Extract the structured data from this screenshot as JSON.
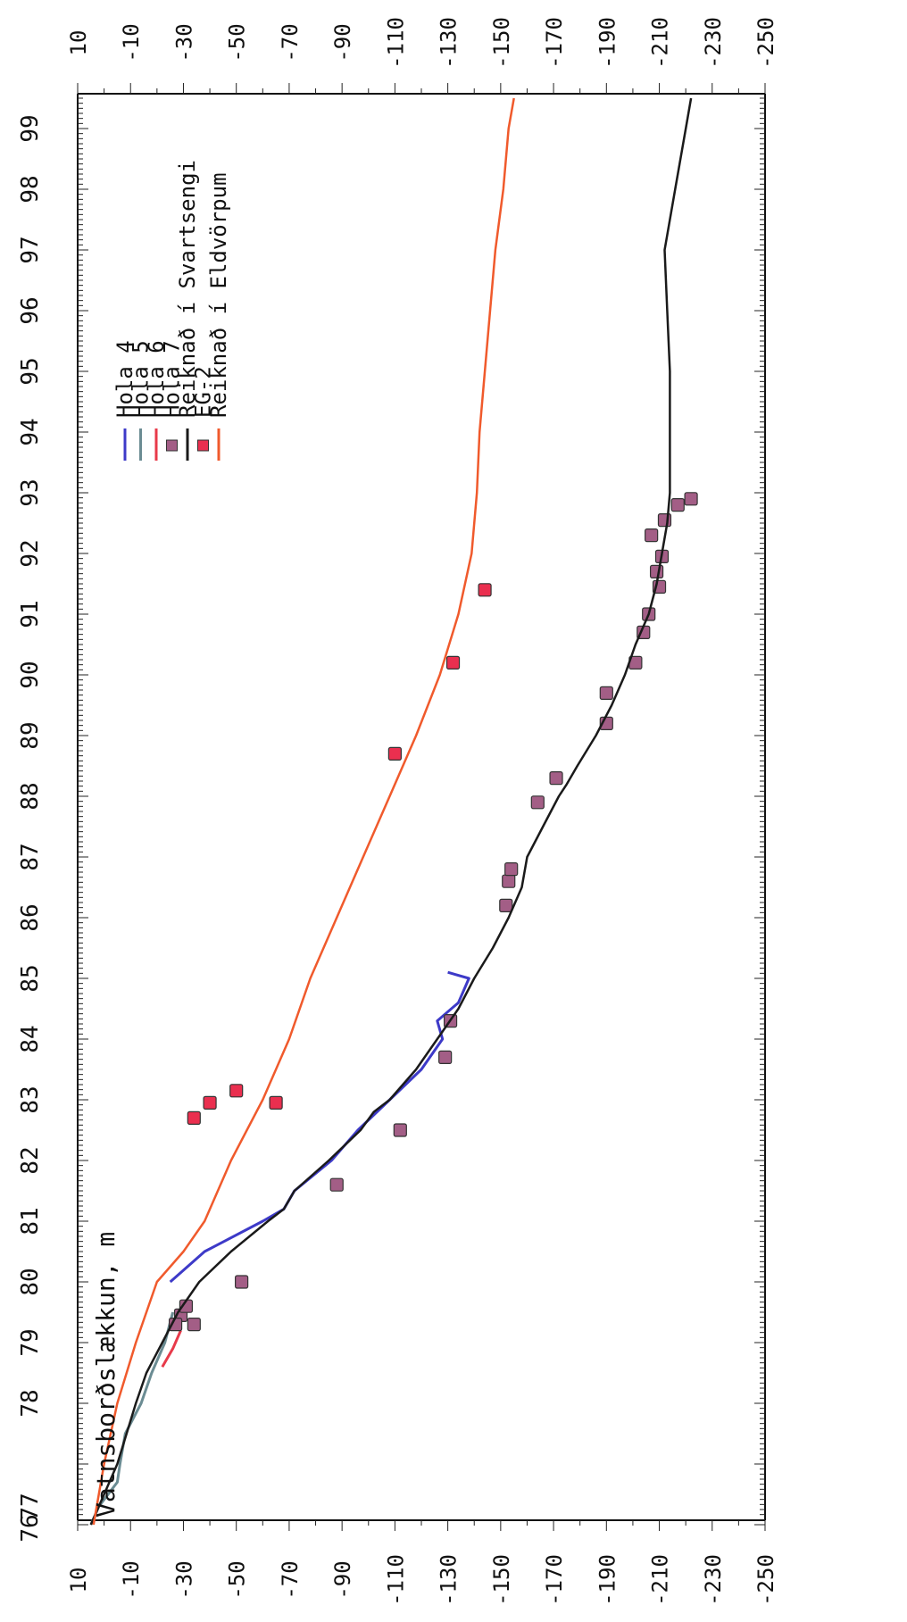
{
  "chart_data": {
    "type": "line",
    "orientation": "rotated-90",
    "title": "Vatnsborðslækkun, m",
    "x_axis": {
      "ticks": [
        "76",
        "77",
        "78",
        "79",
        "80",
        "81",
        "82",
        "83",
        "84",
        "85",
        "86",
        "87",
        "88",
        "89",
        "90",
        "91",
        "92",
        "93",
        "94",
        "95",
        "96",
        "97",
        "98",
        "99"
      ],
      "range": [
        1976,
        2000
      ]
    },
    "y_axis": {
      "ticks": [
        "10",
        "-10",
        "-30",
        "-50",
        "-70",
        "-90",
        "-110",
        "-130",
        "-150",
        "-170",
        "-190",
        "-210",
        "-230",
        "-250"
      ],
      "range": [
        10,
        -250
      ]
    },
    "legend_placement": "upper middle",
    "legend": [
      {
        "label": "Hola 4",
        "marker": "line",
        "color": "#3d3ac8"
      },
      {
        "label": "Hola 5",
        "marker": "line",
        "color": "#6b8c93"
      },
      {
        "label": "Hola 6",
        "marker": "line",
        "color": "#e83a4a"
      },
      {
        "label": "Hola 7",
        "marker": "square",
        "color": "#a35e86"
      },
      {
        "label": "Reiknað í Svartsengi",
        "marker": "line",
        "color": "#1a1a1a"
      },
      {
        "label": "EG-2",
        "marker": "square",
        "color": "#ea2f4f"
      },
      {
        "label": "Reiknað í Eldvörpum",
        "marker": "line",
        "color": "#f05a2c"
      }
    ],
    "series": [
      {
        "name": "Hola 4",
        "style": "line",
        "color": "#3d3ac8",
        "x": [
          1980.0,
          1980.5,
          1981.0,
          1981.2,
          1981.5,
          1982.0,
          1982.5,
          1983.0,
          1983.5,
          1984.0,
          1984.3,
          1984.6,
          1985.0,
          1985.1
        ],
        "y": [
          -25,
          -38,
          -60,
          -68,
          -72,
          -86,
          -96,
          -108,
          -120,
          -128,
          -126,
          -134,
          -138,
          -130
        ]
      },
      {
        "name": "Hola 5",
        "style": "line",
        "color": "#6b8c93",
        "x": [
          1976.0,
          1976.3,
          1976.7,
          1977.0,
          1977.5,
          1978.0,
          1978.5,
          1979.0,
          1979.5
        ],
        "y": [
          5,
          2,
          -5,
          -6,
          -8,
          -14,
          -18,
          -23,
          -26
        ]
      },
      {
        "name": "Hola 6",
        "style": "line",
        "color": "#e83a4a",
        "x": [
          1978.6,
          1978.9,
          1979.2
        ],
        "y": [
          -22,
          -26,
          -29
        ]
      },
      {
        "name": "Hola 7",
        "style": "scatter",
        "color": "#a35e86",
        "x": [
          1979.3,
          1979.45,
          1979.6,
          1979.3,
          1980.0,
          1981.6,
          1982.5,
          1983.7,
          1984.3,
          1986.2,
          1986.6,
          1986.8,
          1987.9,
          1988.3,
          1989.2,
          1989.7,
          1990.2,
          1990.7,
          1991.0,
          1991.45,
          1991.7,
          1991.95,
          1992.3,
          1992.55,
          1992.8,
          1992.9
        ],
        "y": [
          -34,
          -29,
          -31,
          -27,
          -52,
          -88,
          -112,
          -129,
          -131,
          -152,
          -153,
          -154,
          -164,
          -171,
          -190,
          -190,
          -201,
          -204,
          -206,
          -210,
          -209,
          -211,
          -207,
          -212,
          -217,
          -222
        ]
      },
      {
        "name": "Reiknað í Svartsengi",
        "style": "line",
        "color": "#1a1a1a",
        "x": [
          1976.0,
          1976.5,
          1977.0,
          1978.0,
          1978.5,
          1979.0,
          1979.5,
          1980.0,
          1980.5,
          1981.0,
          1981.2,
          1981.5,
          1982.0,
          1982.5,
          1982.8,
          1983.0,
          1983.5,
          1984.0,
          1984.5,
          1985.0,
          1985.5,
          1986.0,
          1986.5,
          1987.0,
          1987.5,
          1988.0,
          1988.2,
          1988.5,
          1989.0,
          1989.5,
          1990.0,
          1990.5,
          1991.0,
          1991.5,
          1992.0,
          1992.5,
          1993.0,
          1993.5,
          1994.0,
          1995.0,
          1996.0,
          1997.0,
          1998.0,
          1999.0,
          1999.5
        ],
        "y": [
          5,
          0,
          -5,
          -12,
          -16,
          -22,
          -28,
          -36,
          -48,
          -62,
          -68,
          -72,
          -85,
          -97,
          -102,
          -108,
          -118,
          -126,
          -134,
          -140,
          -147,
          -153,
          -158,
          -160,
          -166,
          -172,
          -175,
          -179,
          -186,
          -192,
          -197,
          -201,
          -206,
          -209,
          -211,
          -213,
          -214,
          -214,
          -214,
          -214,
          -213,
          -212,
          -216,
          -220,
          -222
        ]
      },
      {
        "name": "EG-2",
        "style": "scatter",
        "color": "#ea2f4f",
        "x": [
          1982.7,
          1982.95,
          1983.15,
          1982.95,
          1988.7,
          1990.2,
          1991.4
        ],
        "y": [
          -34,
          -40,
          -50,
          -65,
          -110,
          -132,
          -144
        ]
      },
      {
        "name": "Reiknað í Eldvörpum",
        "style": "line",
        "color": "#f05a2c",
        "x": [
          1976.0,
          1977.0,
          1978.0,
          1979.0,
          1980.0,
          1980.5,
          1981.0,
          1982.0,
          1983.0,
          1984.0,
          1985.0,
          1986.0,
          1987.0,
          1988.0,
          1989.0,
          1990.0,
          1991.0,
          1992.0,
          1993.0,
          1994.0,
          1995.0,
          1996.0,
          1997.0,
          1998.0,
          1999.0,
          1999.5
        ],
        "y": [
          4,
          0,
          -5,
          -12,
          -20,
          -30,
          -38,
          -48,
          -60,
          -70,
          -78,
          -88,
          -98,
          -108,
          -118,
          -127,
          -134,
          -139,
          -141,
          -142,
          -144,
          -146,
          -148,
          -151,
          -153,
          -155
        ]
      }
    ]
  }
}
